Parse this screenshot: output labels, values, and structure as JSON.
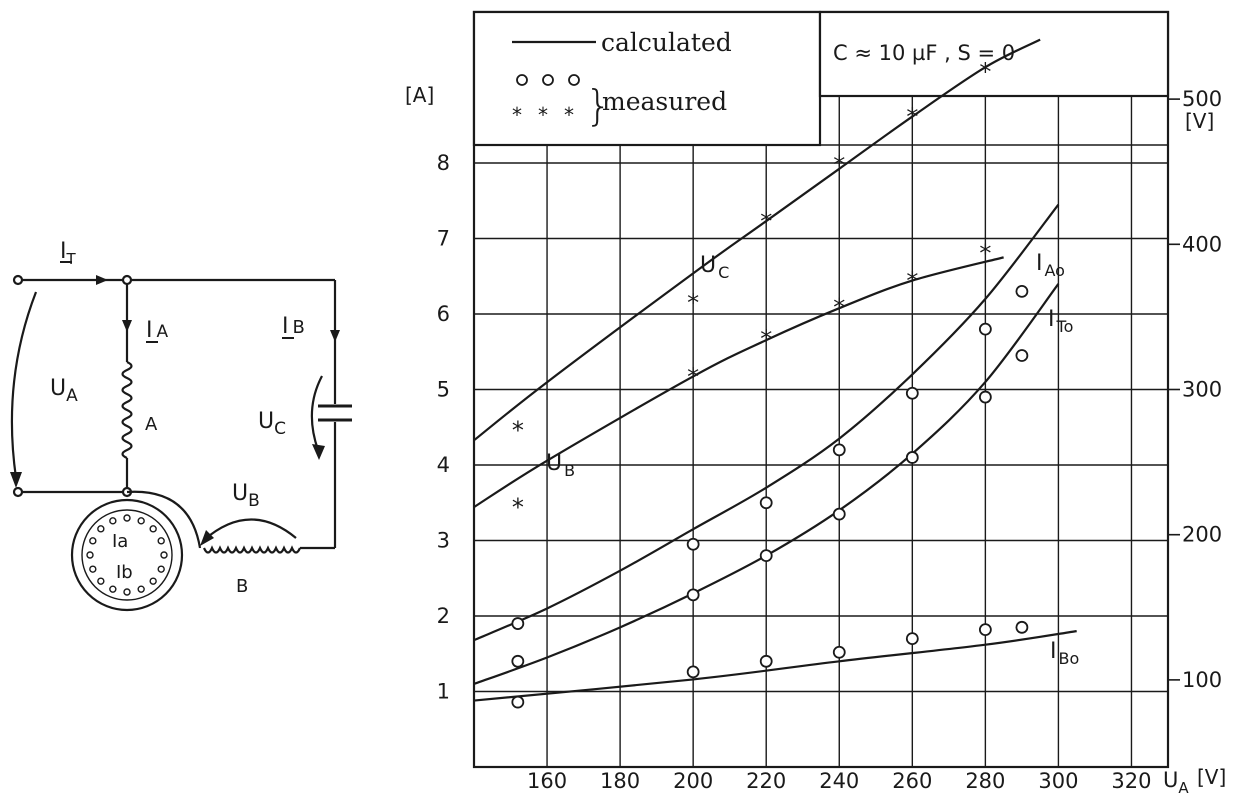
{
  "circuit": {
    "labels": {
      "it": "I",
      "it_sub": "T",
      "ia": "I",
      "ia_sub": "A",
      "ib": "I",
      "ib_sub": "B",
      "ua": "U",
      "ua_sub": "A",
      "uc": "U",
      "uc_sub": "C",
      "ub": "U",
      "ub_sub": "B",
      "winding_a": "A",
      "winding_b": "B",
      "rotor_ia": "Ia",
      "rotor_ib": "Ib"
    }
  },
  "chart_data": {
    "type": "line",
    "title_box": "C ≈ 10 µF ,   S = 0",
    "legend": {
      "calculated": "calculated",
      "measured": "measured",
      "placement": "top-left"
    },
    "left_axis_unit": "[A]",
    "right_axis_unit": "[V]",
    "xlabel": "U",
    "xlabel_sub": "A",
    "xlabel_unit": "[V]",
    "xlim": [
      140,
      330
    ],
    "x_ticks": [
      160,
      180,
      200,
      220,
      240,
      260,
      280,
      300,
      320
    ],
    "left_ylim": [
      0,
      10
    ],
    "left_ticks": [
      1,
      2,
      3,
      4,
      5,
      6,
      7,
      8
    ],
    "right_ylim": [
      40,
      560
    ],
    "right_ticks": [
      100,
      200,
      300,
      400,
      500
    ],
    "grid": true,
    "series": [
      {
        "name": "U",
        "name_sub": "C",
        "axis": "right",
        "calculated": {
          "x": [
            140,
            160,
            200,
            220,
            240,
            260,
            280,
            295
          ],
          "y": [
            265,
            305,
            380,
            416,
            452,
            488,
            522,
            541
          ]
        },
        "measured_marker": "star",
        "measured": {
          "x": [
            152,
            200,
            220,
            240,
            260,
            280
          ],
          "y": [
            273,
            361,
            417,
            456,
            489,
            520
          ]
        }
      },
      {
        "name": "U",
        "name_sub": "B",
        "axis": "right",
        "calculated": {
          "x": [
            140,
            160,
            200,
            220,
            240,
            260,
            285
          ],
          "y": [
            219,
            251,
            309,
            334,
            356,
            375,
            391
          ]
        },
        "measured_marker": "star",
        "measured": {
          "x": [
            152,
            200,
            220,
            240,
            260,
            280
          ],
          "y": [
            220,
            310,
            336,
            358,
            376,
            395
          ]
        }
      },
      {
        "name": "I",
        "name_sub": "A",
        "name_suffix": "o",
        "axis": "left",
        "calculated": {
          "x": [
            140,
            160,
            180,
            200,
            220,
            240,
            260,
            280,
            300
          ],
          "y": [
            1.68,
            2.1,
            2.6,
            3.15,
            3.7,
            4.35,
            5.2,
            6.2,
            7.45
          ]
        },
        "measured_marker": "circle",
        "measured": {
          "x": [
            152,
            200,
            220,
            240,
            260,
            280,
            290
          ],
          "y": [
            1.9,
            2.95,
            3.5,
            4.2,
            4.95,
            5.8,
            6.3
          ]
        }
      },
      {
        "name": "I",
        "name_sub": "T",
        "name_suffix": "o",
        "axis": "left",
        "calculated": {
          "x": [
            140,
            160,
            180,
            200,
            220,
            240,
            260,
            280,
            300
          ],
          "y": [
            1.1,
            1.45,
            1.85,
            2.3,
            2.8,
            3.4,
            4.15,
            5.1,
            6.4
          ]
        },
        "measured_marker": "circle",
        "measured": {
          "x": [
            152,
            200,
            220,
            240,
            260,
            280,
            290
          ],
          "y": [
            1.4,
            2.28,
            2.8,
            3.35,
            4.1,
            4.9,
            5.45
          ]
        }
      },
      {
        "name": "I",
        "name_sub": "B",
        "name_suffix": "o",
        "axis": "left",
        "calculated": {
          "x": [
            140,
            200,
            240,
            280,
            305
          ],
          "y": [
            0.88,
            1.16,
            1.4,
            1.62,
            1.8
          ]
        },
        "measured_marker": "circle",
        "measured": {
          "x": [
            152,
            200,
            220,
            240,
            260,
            280,
            290
          ],
          "y": [
            0.86,
            1.26,
            1.4,
            1.52,
            1.7,
            1.82,
            1.85
          ]
        }
      }
    ]
  }
}
